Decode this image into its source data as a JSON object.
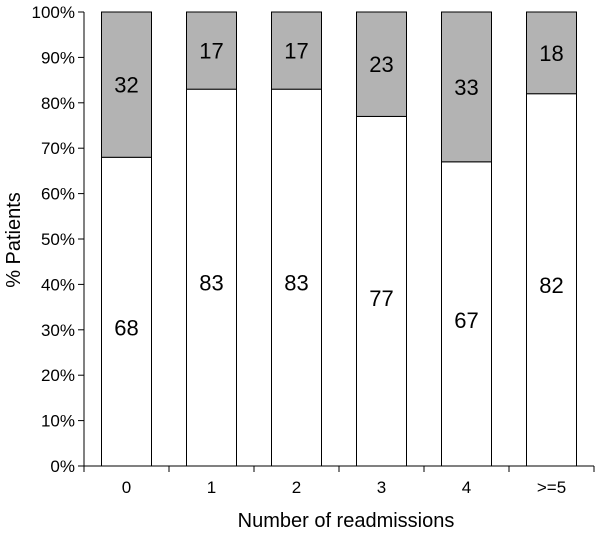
{
  "chart_data": {
    "type": "bar",
    "stacked": true,
    "percent": true,
    "title": "",
    "xlabel": "Number of readmissions",
    "ylabel": "% Patients",
    "categories": [
      "0",
      "1",
      "2",
      "3",
      "4",
      ">=5"
    ],
    "ylim": [
      0,
      100
    ],
    "yticks": [
      0,
      10,
      20,
      30,
      40,
      50,
      60,
      70,
      80,
      90,
      100
    ],
    "ytick_labels": [
      "0%",
      "10%",
      "20%",
      "30%",
      "40%",
      "50%",
      "60%",
      "70%",
      "80%",
      "90%",
      "100%"
    ],
    "grid": false,
    "legend": "none",
    "series": [
      {
        "values": [
          68,
          83,
          83,
          77,
          67,
          82
        ],
        "color": "#ffffff"
      },
      {
        "values": [
          32,
          17,
          17,
          23,
          33,
          18
        ],
        "color": "#b3b3b3"
      }
    ]
  }
}
